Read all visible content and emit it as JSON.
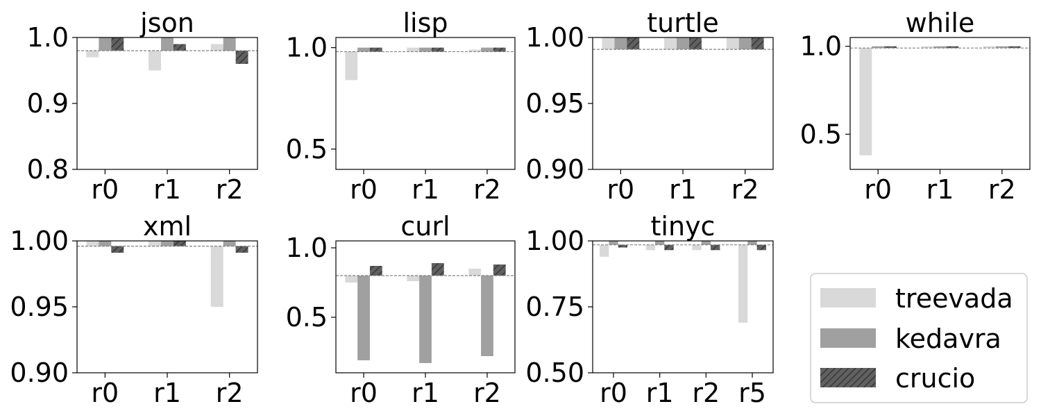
{
  "figure": {
    "legend": {
      "placement": "bottom-right",
      "entries": [
        {
          "name": "treevada",
          "color": "#d9d9d9",
          "hatch": false
        },
        {
          "name": "kedavra",
          "color": "#a0a0a0",
          "hatch": false
        },
        {
          "name": "crucio",
          "color": "#606060",
          "hatch": true
        }
      ]
    }
  },
  "chart_data": [
    {
      "type": "bar",
      "title": "json",
      "categories": [
        "r0",
        "r1",
        "r2"
      ],
      "baseline": 0.98,
      "ylim": [
        0.8,
        1.0
      ],
      "yticks": [
        {
          "v": 0.8,
          "label": "0.8"
        },
        {
          "v": 0.9,
          "label": "0.9"
        },
        {
          "v": 1.0,
          "label": "1.0"
        }
      ],
      "series": [
        {
          "name": "treevada",
          "values": [
            0.97,
            0.95,
            0.99
          ]
        },
        {
          "name": "kedavra",
          "values": [
            1.0,
            1.0,
            1.0
          ]
        },
        {
          "name": "crucio",
          "values": [
            1.0,
            0.99,
            0.96
          ]
        }
      ]
    },
    {
      "type": "bar",
      "title": "lisp",
      "categories": [
        "r0",
        "r1",
        "r2"
      ],
      "baseline": 0.98,
      "ylim": [
        0.4,
        1.05
      ],
      "yticks": [
        {
          "v": 0.5,
          "label": "0.5"
        },
        {
          "v": 1.0,
          "label": "1.0"
        }
      ],
      "series": [
        {
          "name": "treevada",
          "values": [
            0.84,
            1.0,
            0.99
          ]
        },
        {
          "name": "kedavra",
          "values": [
            1.0,
            1.0,
            1.0
          ]
        },
        {
          "name": "crucio",
          "values": [
            1.0,
            1.0,
            1.0
          ]
        }
      ]
    },
    {
      "type": "bar",
      "title": "turtle",
      "categories": [
        "r0",
        "r1",
        "r2"
      ],
      "baseline": 0.991,
      "ylim": [
        0.9,
        1.0
      ],
      "yticks": [
        {
          "v": 0.9,
          "label": "0.90"
        },
        {
          "v": 0.95,
          "label": "0.95"
        },
        {
          "v": 1.0,
          "label": "1.00"
        }
      ],
      "series": [
        {
          "name": "treevada",
          "values": [
            1.0,
            1.0,
            1.0
          ]
        },
        {
          "name": "kedavra",
          "values": [
            1.0,
            1.0,
            1.0
          ]
        },
        {
          "name": "crucio",
          "values": [
            1.0,
            1.0,
            1.0
          ]
        }
      ]
    },
    {
      "type": "bar",
      "title": "while",
      "categories": [
        "r0",
        "r1",
        "r2"
      ],
      "baseline": 0.99,
      "ylim": [
        0.3,
        1.05
      ],
      "yticks": [
        {
          "v": 0.5,
          "label": "0.5"
        },
        {
          "v": 1.0,
          "label": "1.0"
        }
      ],
      "series": [
        {
          "name": "treevada",
          "values": [
            0.38,
            1.0,
            1.0
          ]
        },
        {
          "name": "kedavra",
          "values": [
            1.0,
            1.0,
            1.0
          ]
        },
        {
          "name": "crucio",
          "values": [
            1.0,
            1.0,
            1.0
          ]
        }
      ]
    },
    {
      "type": "bar",
      "title": "xml",
      "categories": [
        "r0",
        "r1",
        "r2"
      ],
      "baseline": 0.996,
      "ylim": [
        0.9,
        1.0
      ],
      "yticks": [
        {
          "v": 0.9,
          "label": "0.90"
        },
        {
          "v": 0.95,
          "label": "0.95"
        },
        {
          "v": 1.0,
          "label": "1.00"
        }
      ],
      "series": [
        {
          "name": "treevada",
          "values": [
            1.0,
            1.0,
            0.95
          ]
        },
        {
          "name": "kedavra",
          "values": [
            1.0,
            1.0,
            1.0
          ]
        },
        {
          "name": "crucio",
          "values": [
            0.991,
            1.0,
            0.991
          ]
        }
      ]
    },
    {
      "type": "bar",
      "title": "curl",
      "categories": [
        "r0",
        "r1",
        "r2"
      ],
      "baseline": 0.8,
      "ylim": [
        0.1,
        1.05
      ],
      "yticks": [
        {
          "v": 0.5,
          "label": "0.5"
        },
        {
          "v": 1.0,
          "label": "1.0"
        }
      ],
      "series": [
        {
          "name": "treevada",
          "values": [
            0.75,
            0.76,
            0.85
          ]
        },
        {
          "name": "kedavra",
          "values": [
            0.19,
            0.17,
            0.22
          ]
        },
        {
          "name": "crucio",
          "values": [
            0.87,
            0.89,
            0.88
          ]
        }
      ]
    },
    {
      "type": "bar",
      "title": "tinyc",
      "categories": [
        "r0",
        "r1",
        "r2",
        "r5"
      ],
      "baseline": 0.985,
      "ylim": [
        0.5,
        1.0
      ],
      "yticks": [
        {
          "v": 0.5,
          "label": "0.50"
        },
        {
          "v": 0.75,
          "label": "0.75"
        },
        {
          "v": 1.0,
          "label": "1.00"
        }
      ],
      "series": [
        {
          "name": "treevada",
          "values": [
            0.94,
            0.965,
            0.965,
            0.69
          ]
        },
        {
          "name": "kedavra",
          "values": [
            1.0,
            1.0,
            1.0,
            1.0
          ]
        },
        {
          "name": "crucio",
          "values": [
            0.975,
            0.965,
            0.965,
            0.965
          ]
        }
      ]
    }
  ]
}
